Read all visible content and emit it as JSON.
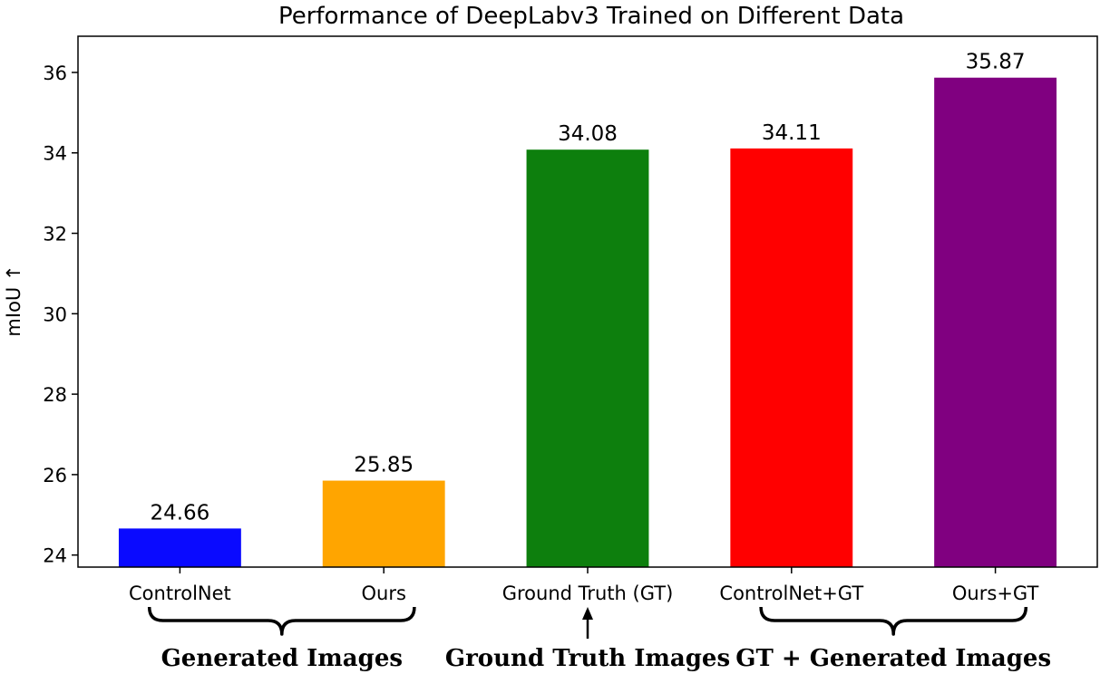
{
  "chart_data": {
    "type": "bar",
    "title": "Performance of DeepLabv3 Trained on Different Data",
    "xlabel": "",
    "ylabel": "mIoU ↑",
    "ylim": [
      23.7,
      36.9
    ],
    "yticks": [
      24,
      26,
      28,
      30,
      32,
      34,
      36
    ],
    "categories": [
      "ControlNet",
      "Ours",
      "Ground Truth (GT)",
      "ControlNet+GT",
      "Ours+GT"
    ],
    "values": [
      24.66,
      25.85,
      34.08,
      34.11,
      35.87
    ],
    "value_labels": [
      "24.66",
      "25.85",
      "34.08",
      "34.11",
      "35.87"
    ],
    "colors": [
      "#0a0aff",
      "#ffa500",
      "#0d7f0d",
      "#ff0000",
      "#800080"
    ],
    "grid": false,
    "groups": [
      {
        "label": "Generated Images",
        "marker": "brace",
        "from": 0,
        "to": 1
      },
      {
        "label": "Ground Truth Images",
        "marker": "arrow",
        "from": 2,
        "to": 2
      },
      {
        "label": "GT + Generated Images",
        "marker": "brace",
        "from": 3,
        "to": 4
      }
    ]
  }
}
